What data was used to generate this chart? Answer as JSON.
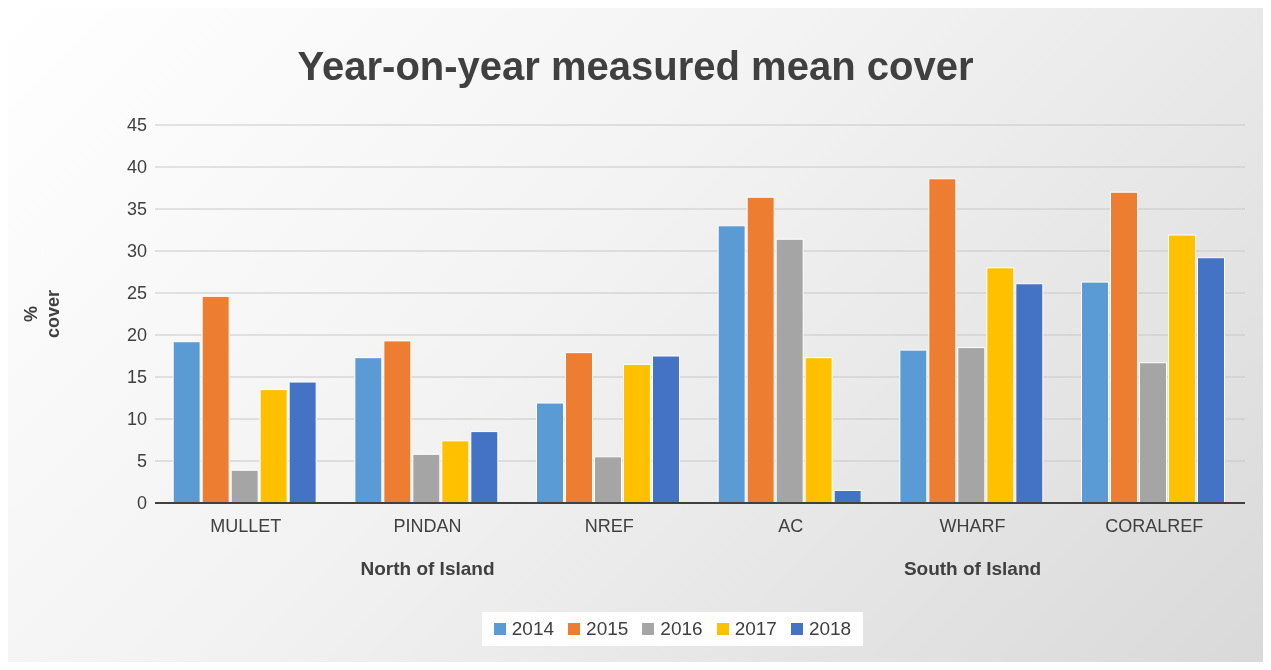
{
  "chart_data": {
    "type": "bar",
    "title": "Year-on-year measured mean cover",
    "ylabel": "% cover",
    "categories": [
      "MULLET",
      "PINDAN",
      "NREF",
      "AC",
      "WHARF",
      "CORALREF"
    ],
    "series": [
      {
        "name": "2014",
        "color": "#5b9bd5",
        "values": [
          19.2,
          17.3,
          11.9,
          33.0,
          18.2,
          26.3
        ]
      },
      {
        "name": "2015",
        "color": "#ed7d31",
        "values": [
          24.6,
          19.3,
          17.9,
          36.4,
          38.6,
          37.0
        ]
      },
      {
        "name": "2016",
        "color": "#a5a5a5",
        "values": [
          3.9,
          5.8,
          5.5,
          31.4,
          18.5,
          16.7
        ]
      },
      {
        "name": "2017",
        "color": "#ffc000",
        "values": [
          13.5,
          7.4,
          16.5,
          17.3,
          28.0,
          31.9
        ]
      },
      {
        "name": "2018",
        "color": "#4472c4",
        "values": [
          14.4,
          8.5,
          17.5,
          1.5,
          26.1,
          29.2
        ]
      }
    ],
    "annotations": [
      "North of Island",
      "South of Island"
    ],
    "ylim": [
      0,
      45
    ],
    "yticks": [
      0,
      5,
      10,
      15,
      20,
      25,
      30,
      35,
      40,
      45
    ],
    "grid": "y",
    "legend": "bottom"
  }
}
